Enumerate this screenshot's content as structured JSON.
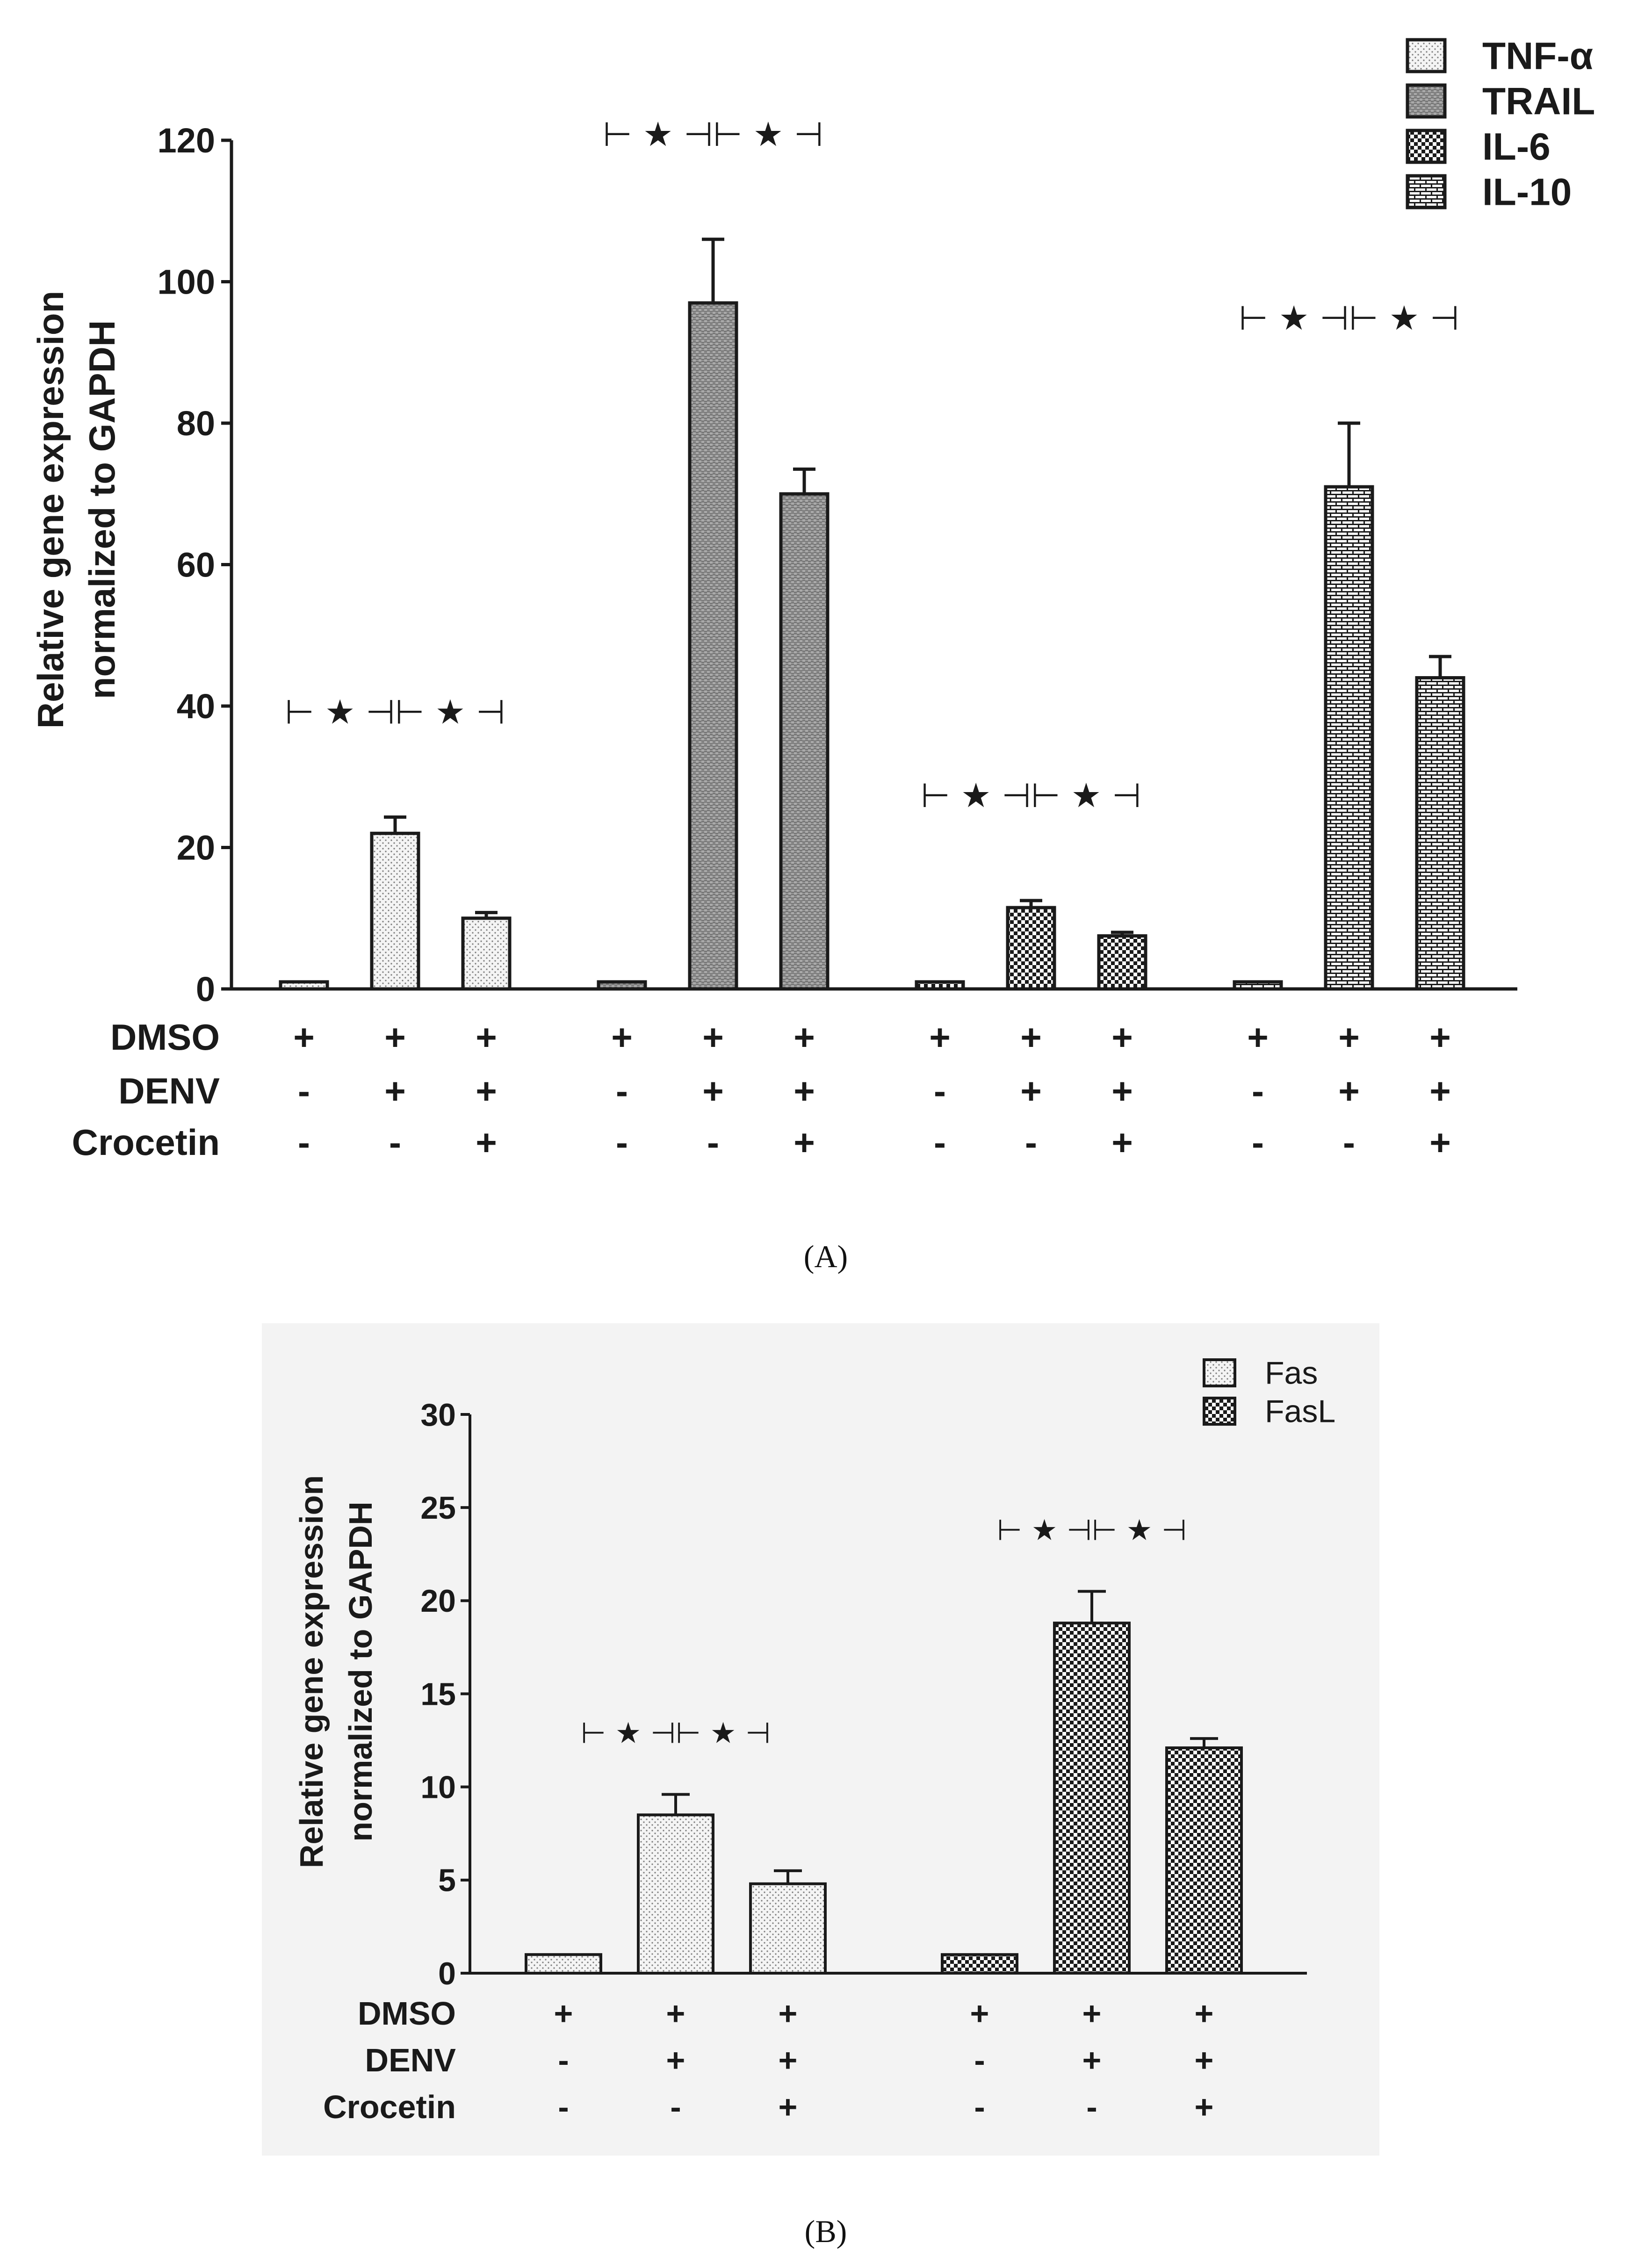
{
  "panels": [
    {
      "panel_label": "(A)",
      "ylabel_lines": [
        "Relative gene expression",
        "normalized to GAPDH"
      ],
      "treatment_rows": [
        "DMSO",
        "DENV",
        "Crocetin"
      ],
      "group_signs": [
        [
          "+",
          "-",
          "-"
        ],
        [
          "+",
          "+",
          "-"
        ],
        [
          "+",
          "+",
          "+"
        ]
      ]
    },
    {
      "panel_label": "(B)",
      "ylabel_lines": [
        "Relative gene expression",
        "normalized to GAPDH"
      ],
      "treatment_rows": [
        "DMSO",
        "DENV",
        "Crocetin"
      ],
      "group_signs": [
        [
          "+",
          "-",
          "-"
        ],
        [
          "+",
          "+",
          "-"
        ],
        [
          "+",
          "+",
          "+"
        ]
      ]
    }
  ],
  "significance_label": "⊢ ★ ⊣⊢ ★ ⊣",
  "chart_data": [
    {
      "type": "bar",
      "title": "",
      "xlabel": "",
      "ylabel": "Relative gene expression normalized to GAPDH",
      "ylim": [
        0,
        120
      ],
      "yticks": [
        0,
        20,
        40,
        60,
        80,
        100,
        120
      ],
      "conditions": [
        "DMSO",
        "DMSO+DENV",
        "DMSO+DENV+Crocetin"
      ],
      "legend_position": "top-right",
      "series": [
        {
          "name": "TNF-α",
          "pattern": "dots",
          "values": [
            1,
            22,
            10
          ],
          "errors": [
            0.1,
            2.3,
            0.8
          ]
        },
        {
          "name": "TRAIL",
          "pattern": "grey-weave",
          "values": [
            1,
            97,
            70
          ],
          "errors": [
            0.1,
            9,
            3.5
          ]
        },
        {
          "name": "IL-6",
          "pattern": "checker",
          "values": [
            1,
            11.5,
            7.5
          ],
          "errors": [
            0.1,
            1,
            0.5
          ]
        },
        {
          "name": "IL-10",
          "pattern": "brick",
          "values": [
            1,
            71,
            44
          ],
          "errors": [
            0.1,
            9,
            3
          ]
        }
      ]
    },
    {
      "type": "bar",
      "title": "",
      "xlabel": "",
      "ylabel": "Relative gene expression normalized to GAPDH",
      "ylim": [
        0,
        30
      ],
      "yticks": [
        0,
        5,
        10,
        15,
        20,
        25,
        30
      ],
      "conditions": [
        "DMSO",
        "DMSO+DENV",
        "DMSO+DENV+Crocetin"
      ],
      "legend_position": "top-right",
      "series": [
        {
          "name": "Fas",
          "pattern": "dots",
          "values": [
            1,
            8.5,
            4.8
          ],
          "errors": [
            0.05,
            1.1,
            0.7
          ]
        },
        {
          "name": "FasL",
          "pattern": "checker",
          "values": [
            1,
            18.8,
            12.1
          ],
          "errors": [
            0.05,
            1.7,
            0.5
          ]
        }
      ]
    }
  ]
}
